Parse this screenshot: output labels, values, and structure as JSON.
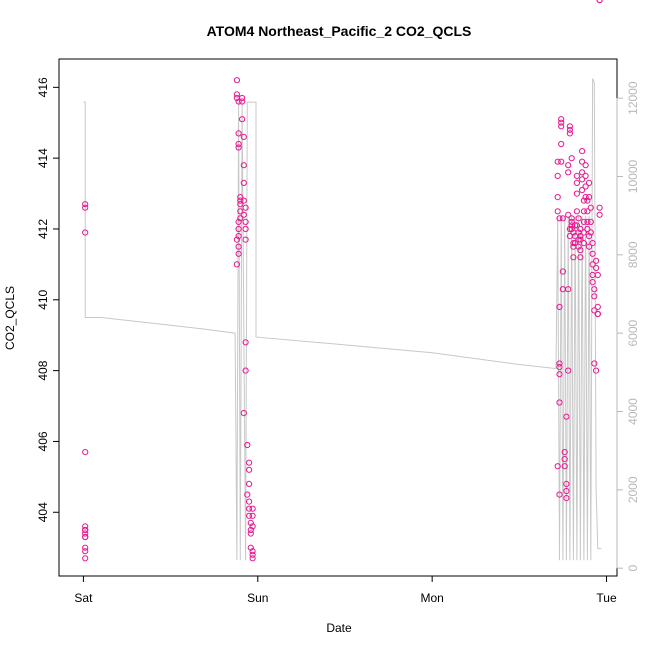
{
  "chart_data": {
    "type": "scatter",
    "title": "ATOM4 Northeast_Pacific_2 CO2_QCLS",
    "xlabel": "Date",
    "ylabel": "CO2_QCLS",
    "x_ticks": [
      "Sat",
      "Sun",
      "Mon",
      "Tue"
    ],
    "x_tick_values": [
      0,
      1,
      2,
      3
    ],
    "xlim": [
      -0.14,
      3.06
    ],
    "ylim": [
      402.2,
      416.8
    ],
    "y_ticks": [
      404,
      406,
      408,
      410,
      412,
      414,
      416
    ],
    "y2lim": [
      -200,
      13000
    ],
    "y2_ticks": [
      0,
      2000,
      4000,
      6000,
      8000,
      10000,
      12000
    ],
    "colors": {
      "points": "#e8178f",
      "altitude_line": "#c8c8c8",
      "right_axis": "#b8b8b8"
    },
    "series": [
      {
        "points_x": [
          0.01,
          0.01,
          0.01,
          0.01,
          0.01,
          0.01,
          0.01,
          0.01,
          0.01,
          0.01,
          0.01,
          0.01,
          0.01,
          0.88,
          0.88,
          0.88,
          0.89,
          0.89,
          0.89,
          0.89,
          0.89,
          0.89,
          0.88,
          0.89,
          0.89,
          0.88,
          0.89,
          0.9,
          0.9,
          0.9,
          0.9,
          0.9,
          0.91,
          0.91,
          0.91,
          0.92,
          0.92,
          0.92,
          0.92,
          0.93,
          0.92,
          0.93,
          0.93,
          0.93,
          0.93,
          0.93,
          0.92,
          0.94,
          0.95,
          0.95,
          0.95,
          0.94,
          0.95,
          0.95,
          0.95,
          0.96,
          0.96,
          0.96,
          0.96,
          0.97,
          0.97,
          0.97,
          0.97,
          0.97,
          0.97,
          2.72,
          2.72,
          2.72,
          2.72,
          2.73,
          2.73,
          2.73,
          2.73,
          2.73,
          2.73,
          2.72,
          2.73,
          2.74,
          2.74,
          2.74,
          2.74,
          2.74,
          2.75,
          2.75,
          2.75,
          2.76,
          2.76,
          2.76,
          2.77,
          2.77,
          2.77,
          2.77,
          2.78,
          2.78,
          2.78,
          2.78,
          2.78,
          2.79,
          2.79,
          2.79,
          2.79,
          2.79,
          2.8,
          2.8,
          2.8,
          2.8,
          2.8,
          2.81,
          2.81,
          2.81,
          2.81,
          2.82,
          2.82,
          2.82,
          2.83,
          2.83,
          2.83,
          2.83,
          2.83,
          2.84,
          2.84,
          2.84,
          2.84,
          2.85,
          2.85,
          2.85,
          2.85,
          2.85,
          2.86,
          2.86,
          2.86,
          2.86,
          2.86,
          2.87,
          2.87,
          2.87,
          2.87,
          2.87,
          2.88,
          2.88,
          2.88,
          2.88,
          2.89,
          2.89,
          2.89,
          2.89,
          2.9,
          2.9,
          2.9,
          2.9,
          2.91,
          2.91,
          2.91,
          2.92,
          2.92,
          2.92,
          2.92,
          2.92,
          2.93,
          2.93,
          2.93,
          2.93,
          2.94,
          2.94,
          2.94,
          2.95,
          2.95,
          2.95,
          2.95,
          2.96,
          2.96,
          2.96,
          2.96
        ],
        "points_y": [
          412.7,
          412.6,
          411.9,
          405.7,
          403.6,
          403.5,
          403.4,
          403.3,
          403.0,
          402.9,
          402.7,
          403.5,
          403.3,
          416.2,
          415.8,
          415.7,
          415.6,
          414.7,
          414.4,
          414.3,
          412.2,
          412.0,
          411.7,
          411.5,
          411.3,
          411.0,
          411.8,
          412.9,
          412.8,
          412.7,
          412.5,
          412.3,
          415.7,
          415.6,
          415.1,
          414.6,
          413.8,
          413.3,
          412.8,
          412.6,
          412.4,
          412.2,
          412.0,
          411.7,
          408.8,
          408.0,
          406.8,
          405.9,
          405.4,
          405.2,
          404.8,
          404.5,
          404.3,
          404.1,
          403.9,
          403.7,
          403.5,
          403.4,
          403.0,
          402.8,
          402.7,
          403.9,
          404.1,
          403.6,
          402.9,
          413.9,
          413.5,
          412.9,
          412.5,
          412.3,
          409.8,
          408.2,
          408.1,
          407.9,
          407.1,
          405.3,
          404.5,
          415.1,
          415.0,
          414.9,
          414.4,
          413.9,
          412.3,
          410.8,
          410.3,
          405.7,
          405.5,
          405.3,
          404.8,
          404.6,
          404.4,
          406.7,
          408.0,
          410.3,
          413.8,
          413.6,
          412.4,
          412.0,
          411.8,
          414.9,
          414.8,
          414.7,
          414.0,
          412.3,
          412.2,
          412.1,
          412.0,
          411.9,
          411.6,
          411.5,
          411.2,
          412.1,
          411.8,
          411.6,
          413.5,
          413.3,
          413.0,
          412.5,
          412.1,
          411.9,
          411.7,
          411.5,
          412.3,
          412.0,
          411.8,
          411.7,
          411.4,
          411.2,
          414.2,
          413.9,
          413.6,
          413.4,
          413.1,
          412.8,
          412.5,
          412.2,
          411.9,
          411.6,
          413.8,
          413.5,
          413.2,
          412.9,
          412.8,
          412.5,
          412.2,
          412.0,
          411.8,
          411.5,
          413.3,
          412.9,
          412.6,
          412.2,
          411.9,
          411.6,
          411.3,
          411.0,
          410.7,
          410.5,
          410.3,
          410.1,
          409.7,
          408.2,
          408.0,
          411.1,
          410.9,
          410.7,
          409.6,
          409.8,
          409.6,
          412.6,
          412.4
        ],
        "altitude_x": [
          0.0,
          0.01,
          0.01,
          0.02,
          0.05,
          0.1,
          0.3,
          0.5,
          0.7,
          0.87,
          0.88,
          0.89,
          0.9,
          0.91,
          0.93,
          0.94,
          0.96,
          0.97,
          0.98,
          0.99,
          0.99,
          1.5,
          2.0,
          2.5,
          2.7,
          2.71,
          2.72,
          2.73,
          2.74,
          2.75,
          2.76,
          2.77,
          2.78,
          2.79,
          2.8,
          2.81,
          2.82,
          2.83,
          2.84,
          2.85,
          2.86,
          2.87,
          2.88,
          2.89,
          2.9,
          2.91,
          2.92,
          2.93,
          2.94,
          2.95,
          2.96,
          2.97
        ],
        "altitude_y": [
          11900,
          11900,
          6400,
          6400,
          6400,
          6400,
          6300,
          6200,
          6100,
          6000,
          200,
          11900,
          200,
          11900,
          200,
          11900,
          11900,
          11900,
          11900,
          11900,
          5900,
          5700,
          5500,
          5200,
          5100,
          5100,
          9000,
          200,
          9000,
          200,
          9000,
          200,
          9000,
          200,
          9000,
          200,
          9000,
          200,
          9000,
          200,
          9000,
          200,
          9000,
          200,
          9000,
          200,
          12500,
          12400,
          2000,
          500,
          500,
          500
        ]
      }
    ]
  }
}
